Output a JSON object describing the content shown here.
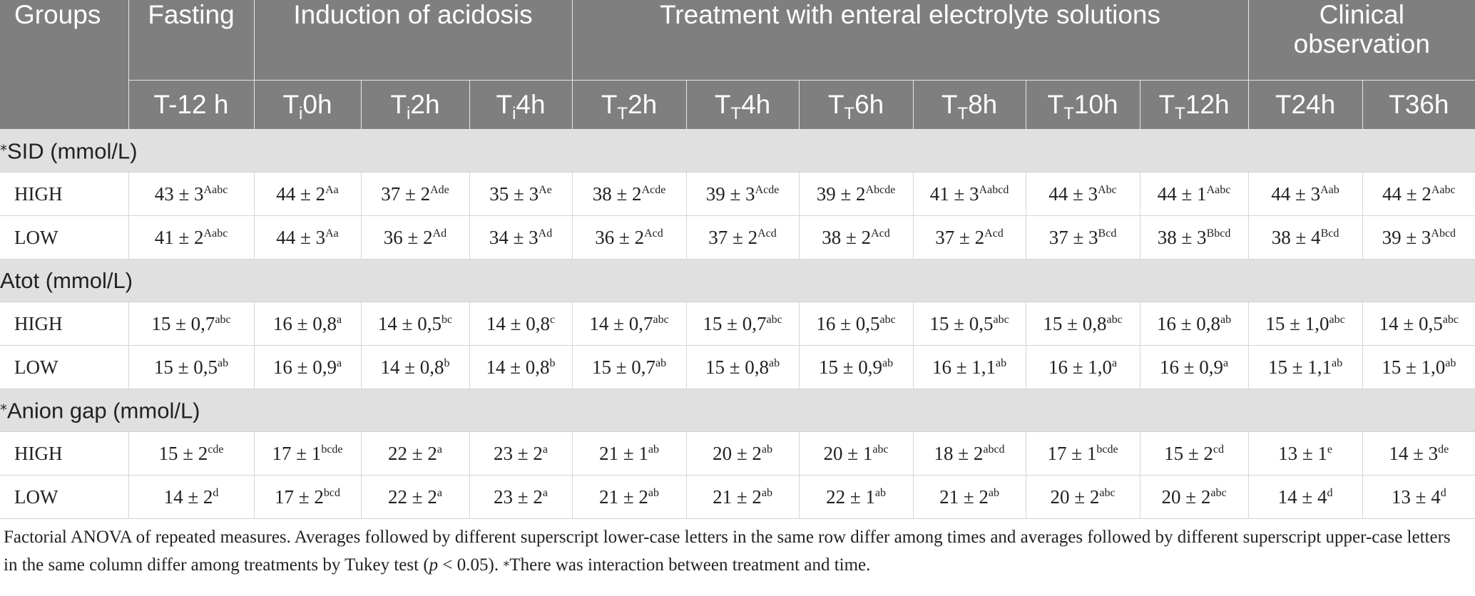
{
  "header": {
    "groups_label": "Groups",
    "phases": [
      {
        "label": "Fasting",
        "span": 1
      },
      {
        "label": "Induction of acidosis",
        "span": 3
      },
      {
        "label": "Treatment with enteral electrolyte solutions",
        "span": 6
      },
      {
        "label": "Clinical observation",
        "span": 2
      }
    ],
    "timepoints": [
      {
        "main": "T-12 h",
        "sub": "",
        "rest": ""
      },
      {
        "main": "T",
        "sub": "i",
        "rest": "0h"
      },
      {
        "main": "T",
        "sub": "i",
        "rest": "2h"
      },
      {
        "main": "T",
        "sub": "i",
        "rest": "4h"
      },
      {
        "main": "T",
        "sub": "T",
        "rest": "2h"
      },
      {
        "main": "T",
        "sub": "T",
        "rest": "4h"
      },
      {
        "main": "T",
        "sub": "T",
        "rest": "6h"
      },
      {
        "main": "T",
        "sub": "T",
        "rest": "8h"
      },
      {
        "main": "T",
        "sub": "T",
        "rest": "10h"
      },
      {
        "main": "T",
        "sub": "T",
        "rest": "12h"
      },
      {
        "main": "T24h",
        "sub": "",
        "rest": ""
      },
      {
        "main": "T36h",
        "sub": "",
        "rest": ""
      }
    ]
  },
  "sections": [
    {
      "marker": "⁎",
      "title": "SID (mmol/L)",
      "rows": [
        {
          "group": "HIGH",
          "cells": [
            {
              "v": "43 ± 3",
              "s": "Aabc"
            },
            {
              "v": "44 ± 2",
              "s": "Aa"
            },
            {
              "v": "37 ± 2",
              "s": "Ade"
            },
            {
              "v": "35 ± 3",
              "s": "Ae"
            },
            {
              "v": "38 ± 2",
              "s": "Acde"
            },
            {
              "v": "39 ± 3",
              "s": "Acde"
            },
            {
              "v": "39 ± 2",
              "s": "Abcde"
            },
            {
              "v": "41 ± 3",
              "s": "Aabcd"
            },
            {
              "v": "44 ± 3",
              "s": "Abc"
            },
            {
              "v": "44 ± 1",
              "s": "Aabc"
            },
            {
              "v": "44 ± 3",
              "s": "Aab"
            },
            {
              "v": "44 ± 2",
              "s": "Aabc"
            }
          ]
        },
        {
          "group": "LOW",
          "cells": [
            {
              "v": "41 ± 2",
              "s": "Aabc"
            },
            {
              "v": "44 ± 3",
              "s": "Aa"
            },
            {
              "v": "36 ± 2",
              "s": "Ad"
            },
            {
              "v": "34 ± 3",
              "s": "Ad"
            },
            {
              "v": "36 ± 2",
              "s": "Acd"
            },
            {
              "v": "37 ± 2",
              "s": "Acd"
            },
            {
              "v": "38 ± 2",
              "s": "Acd"
            },
            {
              "v": "37 ± 2",
              "s": "Acd"
            },
            {
              "v": "37 ± 3",
              "s": "Bcd"
            },
            {
              "v": "38 ± 3",
              "s": "Bbcd"
            },
            {
              "v": "38 ± 4",
              "s": "Bcd"
            },
            {
              "v": "39 ± 3",
              "s": "Abcd"
            }
          ]
        }
      ]
    },
    {
      "marker": "",
      "title": "Atot (mmol/L)",
      "rows": [
        {
          "group": "HIGH",
          "cells": [
            {
              "v": "15 ± 0,7",
              "s": "abc"
            },
            {
              "v": "16 ± 0,8",
              "s": "a"
            },
            {
              "v": "14 ± 0,5",
              "s": "bc"
            },
            {
              "v": "14 ± 0,8",
              "s": "c"
            },
            {
              "v": "14 ± 0,7",
              "s": "abc"
            },
            {
              "v": "15 ± 0,7",
              "s": "abc"
            },
            {
              "v": "16 ± 0,5",
              "s": "abc"
            },
            {
              "v": "15 ± 0,5",
              "s": "abc"
            },
            {
              "v": "15 ± 0,8",
              "s": "abc"
            },
            {
              "v": "16 ± 0,8",
              "s": "ab"
            },
            {
              "v": "15 ± 1,0",
              "s": "abc"
            },
            {
              "v": "14 ± 0,5",
              "s": "abc"
            }
          ]
        },
        {
          "group": "LOW",
          "cells": [
            {
              "v": "15 ± 0,5",
              "s": "ab"
            },
            {
              "v": "16 ± 0,9",
              "s": "a"
            },
            {
              "v": "14 ± 0,8",
              "s": "b"
            },
            {
              "v": "14 ± 0,8",
              "s": "b"
            },
            {
              "v": "15 ± 0,7",
              "s": "ab"
            },
            {
              "v": "15 ± 0,8",
              "s": "ab"
            },
            {
              "v": "15 ± 0,9",
              "s": "ab"
            },
            {
              "v": "16 ± 1,1",
              "s": "ab"
            },
            {
              "v": "16 ± 1,0",
              "s": "a"
            },
            {
              "v": "16 ± 0,9",
              "s": "a"
            },
            {
              "v": "15 ± 1,1",
              "s": "ab"
            },
            {
              "v": "15 ± 1,0",
              "s": "ab"
            }
          ]
        }
      ]
    },
    {
      "marker": "⁎",
      "title": "Anion gap (mmol/L)",
      "rows": [
        {
          "group": "HIGH",
          "cells": [
            {
              "v": "15 ± 2",
              "s": "cde"
            },
            {
              "v": "17 ± 1",
              "s": "bcde"
            },
            {
              "v": "22 ± 2",
              "s": "a"
            },
            {
              "v": "23 ± 2",
              "s": "a"
            },
            {
              "v": "21 ± 1",
              "s": "ab"
            },
            {
              "v": "20 ± 2",
              "s": "ab"
            },
            {
              "v": "20 ± 1",
              "s": "abc"
            },
            {
              "v": "18 ± 2",
              "s": "abcd"
            },
            {
              "v": "17 ± 1",
              "s": "bcde"
            },
            {
              "v": "15 ± 2",
              "s": "cd"
            },
            {
              "v": "13 ± 1",
              "s": "e"
            },
            {
              "v": "14 ± 3",
              "s": "de"
            }
          ]
        },
        {
          "group": "LOW",
          "cells": [
            {
              "v": "14 ± 2",
              "s": "d"
            },
            {
              "v": "17 ± 2",
              "s": "bcd"
            },
            {
              "v": "22 ± 2",
              "s": "a"
            },
            {
              "v": "23 ± 2",
              "s": "a"
            },
            {
              "v": "21 ± 2",
              "s": "ab"
            },
            {
              "v": "21 ± 2",
              "s": "ab"
            },
            {
              "v": "22 ± 1",
              "s": "ab"
            },
            {
              "v": "21 ± 2",
              "s": "ab"
            },
            {
              "v": "20 ± 2",
              "s": "abc"
            },
            {
              "v": "20 ± 2",
              "s": "abc"
            },
            {
              "v": "14 ± 4",
              "s": "d"
            },
            {
              "v": "13 ± 4",
              "s": "d"
            }
          ]
        }
      ]
    }
  ],
  "footnote": {
    "part1": "Factorial ANOVA of repeated measures. Averages followed by different superscript lower-case letters in the same row differ among times and averages followed by different superscript upper-case letters in the same column differ among treatments by Tukey test (",
    "p": "p",
    "part2": " < 0.05). ",
    "marker": "⁎",
    "part3": "There was interaction between treatment and time."
  },
  "colors": {
    "header_bg": "#7f7f7f",
    "section_bg": "#e0e0e0"
  }
}
